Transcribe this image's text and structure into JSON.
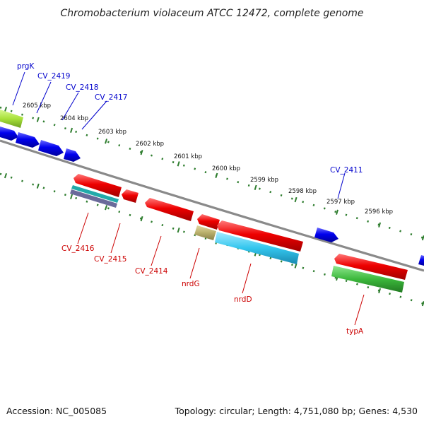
{
  "title": "Chromobacterium violaceum ATCC 12472, complete genome",
  "footer": {
    "accession": "Accession: NC_005085",
    "summary": "Topology: circular; Length: 4,751,080 bp; Genes: 4,530"
  },
  "ticks": [
    "2605 kbp",
    "2604 kbp",
    "2603 kbp",
    "2602 kbp",
    "2601 kbp",
    "2600 kbp",
    "2599 kbp",
    "2598 kbp",
    "2597 kbp",
    "2596 kbp"
  ],
  "forward_labels": [
    "prgK",
    "CV_2419",
    "CV_2418",
    "CV_2417",
    "CV_2411"
  ],
  "reverse_labels": [
    "CV_2416",
    "CV_2415",
    "CV_2414",
    "nrdG",
    "nrdD",
    "typA"
  ],
  "colors": {
    "forward_cds": "#0000ee",
    "reverse_cds": "#ee0000",
    "forward_label": "#0000cc",
    "reverse_label": "#cc0000",
    "backbone": "#808080",
    "ruler": "#2e7d2e",
    "lime_feature": "#a8e23a",
    "cyan_feature": "#33c6ee",
    "green_feature": "#3cb83c",
    "khaki_feature": "#b8ae6a",
    "teal_feature": "#22aaaa",
    "slate_feature": "#6a6a9a"
  }
}
